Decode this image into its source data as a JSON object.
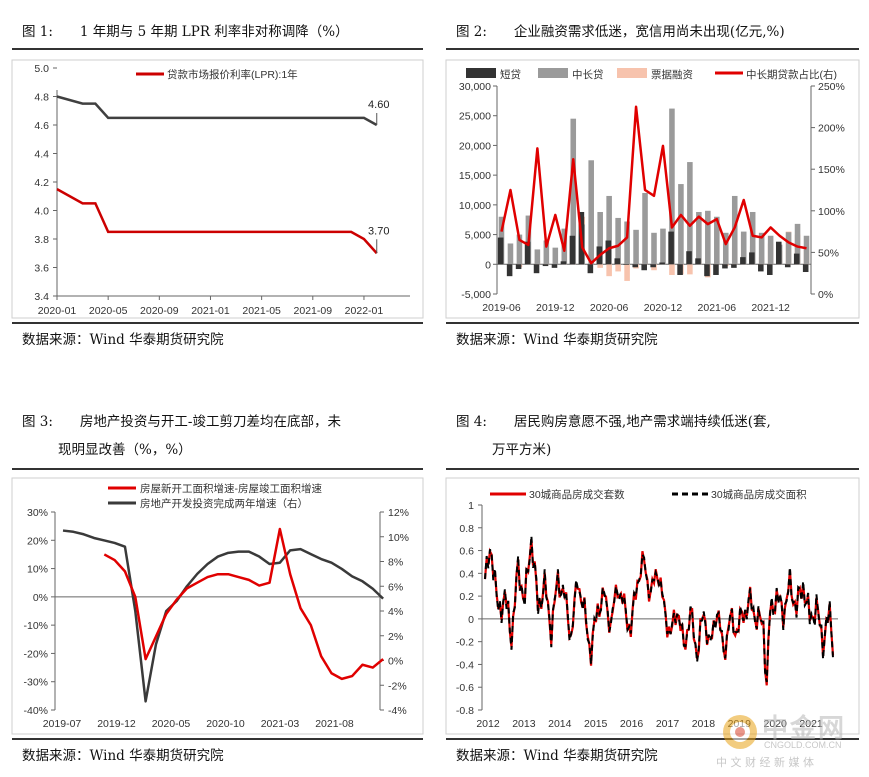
{
  "panels": [
    {
      "id": "fig1",
      "title": "图 1:　　1 年期与 5 年期 LPR 利率非对称调降（%）",
      "source": "数据来源：Wind  华泰期货研究院"
    },
    {
      "id": "fig2",
      "title": "图 2:　　企业融资需求低迷，宽信用尚未出现(亿元,%)",
      "source": "数据来源：Wind  华泰期货研究院"
    },
    {
      "id": "fig3",
      "title_line1": "图 3:　　房地产投资与开工-竣工剪刀差均在底部，未",
      "title_line2": "现明显改善（%，%）",
      "source": "数据来源：Wind  华泰期货研究院"
    },
    {
      "id": "fig4",
      "title_line1": "图 4:　　居民购房意愿不强,地产需求端持续低迷(套,",
      "title_line2": "万平方米)",
      "source": "数据来源：Wind  华泰期货研究院"
    }
  ],
  "watermark": {
    "brand": "中金网",
    "domain": "CNGOLD.COM.CN",
    "slogan": "中 文 财 经 新 媒 体"
  },
  "chart_data": [
    {
      "id": "fig1",
      "type": "line",
      "legend": [
        "贷款市场报价利率(LPR):1年"
      ],
      "series_colors": [
        "#cc0000",
        "#404040"
      ],
      "x_ticks": [
        "2020-01",
        "2020-05",
        "2020-09",
        "2021-01",
        "2021-05",
        "2021-09",
        "2022-01"
      ],
      "ylim": [
        3.4,
        5.0
      ],
      "y_ticks": [
        "3.4",
        "3.6",
        "3.8",
        "4.0",
        "4.2",
        "4.4",
        "4.6",
        "4.8",
        "5.0"
      ],
      "series": [
        {
          "values": [
            [
              0,
              4.8
            ],
            [
              2,
              4.75
            ],
            [
              3,
              4.75
            ],
            [
              4,
              4.65
            ],
            [
              24,
              4.65
            ],
            [
              25,
              4.6
            ]
          ]
        },
        {
          "values": [
            [
              0,
              4.15
            ],
            [
              2,
              4.05
            ],
            [
              3,
              4.05
            ],
            [
              4,
              3.85
            ],
            [
              23,
              3.85
            ],
            [
              24,
              3.8
            ],
            [
              25,
              3.7
            ]
          ]
        }
      ],
      "annotations": [
        "4.60",
        "3.70"
      ]
    },
    {
      "id": "fig2",
      "type": "bar",
      "legend": [
        "短贷",
        "中长贷",
        "票据融资",
        "中长期贷款占比(右)"
      ],
      "colors": {
        "short": "#333333",
        "long": "#9a9a9a",
        "bill": "#f7c3ad",
        "ratio": "#e00000"
      },
      "x_ticks": [
        "2019-06",
        "2019-12",
        "2020-06",
        "2020-12",
        "2021-06",
        "2021-12"
      ],
      "ylim": [
        -5000,
        30000
      ],
      "y_ticks": [
        "-5,000",
        "0",
        "5,000",
        "10,000",
        "15,000",
        "20,000",
        "25,000",
        "30,000"
      ],
      "y2lim": [
        0,
        250
      ],
      "y2_ticks": [
        "0%",
        "50%",
        "100%",
        "150%",
        "200%",
        "250%"
      ],
      "short": [
        4500,
        -2000,
        -800,
        3800,
        -1500,
        -300,
        -600,
        500,
        4800,
        8800,
        -1500,
        3000,
        4000,
        1000,
        -100,
        -500,
        -1000,
        -500,
        300,
        5500,
        -1800,
        2200,
        1000,
        -2000,
        -1800,
        -700,
        -600,
        1200,
        2000,
        -1200,
        -1800,
        3800,
        -500,
        1800,
        -1300
      ],
      "long": [
        8000,
        3500,
        5000,
        8200,
        2500,
        4000,
        2800,
        6000,
        24500,
        6700,
        17500,
        8800,
        11500,
        7800,
        7200,
        5800,
        12000,
        5300,
        6000,
        26200,
        13500,
        17200,
        8800,
        9000,
        8000,
        5300,
        11500,
        5500,
        8800,
        5300,
        4800,
        3300,
        5400,
        6800,
        4800
      ],
      "bill": [
        0,
        0,
        -500,
        0,
        600,
        300,
        0,
        3200,
        3100,
        8000,
        1500,
        -600,
        -2000,
        -1200,
        -2800,
        -700,
        700,
        -1000,
        0,
        -1800,
        -1700,
        -1700,
        1000,
        -2200,
        700,
        -300,
        2800,
        5000,
        3000,
        1200,
        3500,
        2300,
        5500,
        5000,
        3000
      ],
      "ratio": [
        75,
        125,
        65,
        59,
        175,
        57,
        95,
        52,
        162,
        56,
        37,
        47,
        55,
        58,
        68,
        225,
        125,
        118,
        178,
        80,
        95,
        82,
        93,
        84,
        90,
        60,
        80,
        113,
        70,
        68,
        80,
        70,
        62,
        57,
        55
      ]
    },
    {
      "id": "fig3",
      "type": "line",
      "legend": [
        "房屋新开工面积增速-房屋竣工面积增速",
        "房地产开发投资完成两年增速（右）"
      ],
      "x_ticks": [
        "2019-07",
        "2019-12",
        "2020-05",
        "2020-10",
        "2021-03",
        "2021-08"
      ],
      "ylim": [
        -40,
        30
      ],
      "y_ticks": [
        "-40%",
        "-30%",
        "-20%",
        "-10%",
        "0%",
        "10%",
        "20%",
        "30%"
      ],
      "y2lim": [
        -4,
        12
      ],
      "y2_ticks": [
        "-4%",
        "-2%",
        "0%",
        "2%",
        "4%",
        "6%",
        "8%",
        "10%",
        "12%"
      ],
      "red": [
        null,
        null,
        null,
        null,
        15,
        13,
        9,
        0,
        -22,
        -14,
        -6,
        -1,
        3,
        5,
        7,
        8,
        8,
        7,
        6,
        4,
        5,
        24,
        8,
        -4,
        -10,
        -21,
        -27,
        -29,
        -28,
        -24,
        -25,
        -22
      ],
      "black": [
        10.5,
        10.4,
        10.2,
        9.9,
        9.7,
        9.5,
        9.2,
        4,
        -3.3,
        1.3,
        4,
        4.8,
        6,
        7,
        7.8,
        8.4,
        8.7,
        8.8,
        8.8,
        8.4,
        7.8,
        7.9,
        8.9,
        9.0,
        8.6,
        8.2,
        7.9,
        7.4,
        6.8,
        6.4,
        5.8,
        5.0
      ]
    },
    {
      "id": "fig4",
      "type": "line",
      "legend": [
        "30城商品房成交套数",
        "30城商品房成交面积"
      ],
      "x_ticks": [
        "2012",
        "2013",
        "2014",
        "2015",
        "2016",
        "2017",
        "2018",
        "2019",
        "2020",
        "2021"
      ],
      "ylim": [
        -0.8,
        1.0
      ],
      "y_ticks": [
        "-0.8",
        "-0.6",
        "-0.4",
        "-0.2",
        "0",
        "0.2",
        "0.4",
        "0.6",
        "0.8",
        "1"
      ]
    }
  ]
}
